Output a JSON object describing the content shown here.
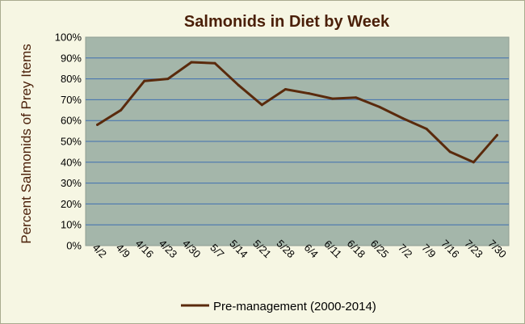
{
  "chart_data": {
    "type": "line",
    "title": "Salmonids in Diet by Week",
    "xlabel": "",
    "ylabel": "Percent Salmonids of Prey Items",
    "categories": [
      "4/2",
      "4/9",
      "4/16",
      "4/23",
      "4/30",
      "5/7",
      "5/14",
      "5/21",
      "5/28",
      "6/4",
      "6/11",
      "6/18",
      "6/25",
      "7/2",
      "7/9",
      "7/16",
      "7/23",
      "7/30"
    ],
    "series": [
      {
        "name": "Pre-management (2000-2014)",
        "values": [
          58,
          65,
          79,
          80,
          88,
          87.5,
          77,
          67.5,
          75,
          73,
          70.5,
          71,
          66.5,
          61,
          56,
          45,
          40,
          53
        ]
      }
    ],
    "ylim": [
      0,
      100
    ],
    "yticks": [
      "0%",
      "10%",
      "20%",
      "30%",
      "40%",
      "50%",
      "60%",
      "70%",
      "80%",
      "90%",
      "100%"
    ],
    "grid": true,
    "legend_position": "bottom",
    "colors": {
      "plot_background": "#a4b6aa",
      "line": "#5a2a0c",
      "gridline": "#3f6fb0",
      "page_background": "#f6f6e3",
      "title_color": "#4a1f08"
    }
  }
}
